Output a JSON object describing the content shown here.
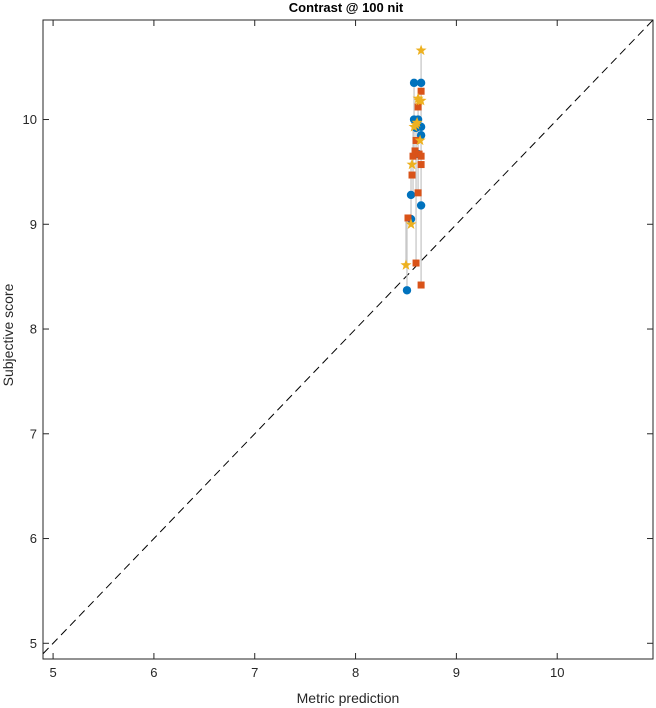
{
  "chart_data": {
    "type": "scatter",
    "title": "Contrast @ 100 nit",
    "xlabel": "Metric prediction",
    "ylabel": "Subjective score",
    "xlim": [
      4.9,
      10.95
    ],
    "ylim": [
      4.85,
      10.95
    ],
    "xticks": [
      5,
      6,
      7,
      8,
      9,
      10
    ],
    "yticks": [
      5,
      6,
      7,
      8,
      9,
      10
    ],
    "grid": false,
    "legend": "none",
    "reference_line": {
      "style": "dashed",
      "color": "#000000",
      "from": [
        4.9,
        4.9
      ],
      "to": [
        10.95,
        10.95
      ]
    },
    "connector_color": "#c8c8c8",
    "series": [
      {
        "marker": "circle",
        "color": "#0072BD",
        "points": [
          {
            "x": 8.51,
            "y": 8.37
          },
          {
            "x": 8.55,
            "y": 9.05
          },
          {
            "x": 8.55,
            "y": 9.28
          },
          {
            "x": 8.58,
            "y": 10.35
          },
          {
            "x": 8.58,
            "y": 10.0
          },
          {
            "x": 8.6,
            "y": 9.92
          },
          {
            "x": 8.62,
            "y": 10.0
          },
          {
            "x": 8.62,
            "y": 9.67
          },
          {
            "x": 8.65,
            "y": 10.35
          },
          {
            "x": 8.65,
            "y": 9.93
          },
          {
            "x": 8.65,
            "y": 9.85
          },
          {
            "x": 8.65,
            "y": 9.18
          }
        ]
      },
      {
        "marker": "square",
        "color": "#D95319",
        "points": [
          {
            "x": 8.52,
            "y": 9.06
          },
          {
            "x": 8.56,
            "y": 9.47
          },
          {
            "x": 8.57,
            "y": 9.65
          },
          {
            "x": 8.59,
            "y": 9.7
          },
          {
            "x": 8.6,
            "y": 9.8
          },
          {
            "x": 8.6,
            "y": 8.63
          },
          {
            "x": 8.62,
            "y": 9.3
          },
          {
            "x": 8.62,
            "y": 10.12
          },
          {
            "x": 8.63,
            "y": 9.67
          },
          {
            "x": 8.65,
            "y": 9.57
          },
          {
            "x": 8.65,
            "y": 9.65
          },
          {
            "x": 8.65,
            "y": 10.27
          },
          {
            "x": 8.65,
            "y": 8.42
          }
        ]
      },
      {
        "marker": "star",
        "color": "#EDB120",
        "points": [
          {
            "x": 8.5,
            "y": 8.61
          },
          {
            "x": 8.55,
            "y": 9.0
          },
          {
            "x": 8.56,
            "y": 9.57
          },
          {
            "x": 8.58,
            "y": 9.93
          },
          {
            "x": 8.6,
            "y": 9.95
          },
          {
            "x": 8.61,
            "y": 9.97
          },
          {
            "x": 8.62,
            "y": 10.2
          },
          {
            "x": 8.63,
            "y": 10.18
          },
          {
            "x": 8.64,
            "y": 9.8
          },
          {
            "x": 8.65,
            "y": 10.66
          },
          {
            "x": 8.65,
            "y": 10.18
          }
        ]
      }
    ],
    "connectors": [
      {
        "x": 8.51,
        "y1": 8.37,
        "y2": 9.06
      },
      {
        "x": 8.5,
        "y1": 8.61,
        "y2": 9.06
      },
      {
        "x": 8.55,
        "y1": 9.0,
        "y2": 9.6
      },
      {
        "x": 8.57,
        "y1": 9.28,
        "y2": 10.0
      },
      {
        "x": 8.58,
        "y1": 9.65,
        "y2": 10.35
      },
      {
        "x": 8.6,
        "y1": 8.63,
        "y2": 9.95
      },
      {
        "x": 8.62,
        "y1": 9.3,
        "y2": 10.2
      },
      {
        "x": 8.65,
        "y1": 8.42,
        "y2": 10.66
      }
    ]
  }
}
